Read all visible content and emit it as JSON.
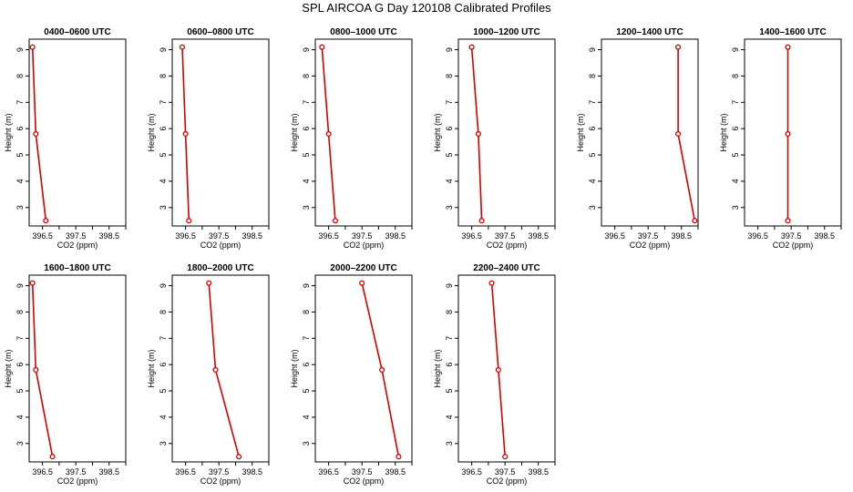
{
  "chart_data": {
    "type": "line",
    "title": "SPL AIRCOA G  Day 120108  Calibrated Profiles",
    "xlabel": "CO2 (ppm)",
    "ylabel": "Height (m)",
    "xlim": [
      396.1,
      399.0
    ],
    "ylim": [
      2.3,
      9.4
    ],
    "xticks": [
      "396.5",
      "397.5",
      "398.5"
    ],
    "yticks": [
      "3",
      "4",
      "5",
      "6",
      "7",
      "8",
      "9"
    ],
    "line_color": "#d40000",
    "grid": false,
    "panels": [
      {
        "title": "0400–0600 UTC",
        "x": [
          396.2,
          396.3,
          396.6
        ],
        "y": [
          9.1,
          5.8,
          2.5
        ]
      },
      {
        "title": "0600–0800 UTC",
        "x": [
          396.4,
          396.5,
          396.6
        ],
        "y": [
          9.1,
          5.8,
          2.5
        ]
      },
      {
        "title": "0800–1000 UTC",
        "x": [
          396.3,
          396.5,
          396.7
        ],
        "y": [
          9.1,
          5.8,
          2.5
        ]
      },
      {
        "title": "1000–1200 UTC",
        "x": [
          396.5,
          396.7,
          396.8
        ],
        "y": [
          9.1,
          5.8,
          2.5
        ]
      },
      {
        "title": "1200–1400 UTC",
        "x": [
          398.4,
          398.4,
          398.9
        ],
        "y": [
          9.1,
          5.8,
          2.5
        ]
      },
      {
        "title": "1400–1600 UTC",
        "x": [
          397.4,
          397.4,
          397.4
        ],
        "y": [
          9.1,
          5.8,
          2.5
        ]
      },
      {
        "title": "1600–1800 UTC",
        "x": [
          396.2,
          396.3,
          396.8
        ],
        "y": [
          9.1,
          5.8,
          2.5
        ]
      },
      {
        "title": "1800–2000 UTC",
        "x": [
          397.2,
          397.4,
          398.1
        ],
        "y": [
          9.1,
          5.8,
          2.5
        ]
      },
      {
        "title": "2000–2200 UTC",
        "x": [
          397.5,
          398.1,
          398.6
        ],
        "y": [
          9.1,
          5.8,
          2.5
        ]
      },
      {
        "title": "2200–2400 UTC",
        "x": [
          397.1,
          397.3,
          397.5
        ],
        "y": [
          9.1,
          5.8,
          2.5
        ]
      }
    ]
  }
}
